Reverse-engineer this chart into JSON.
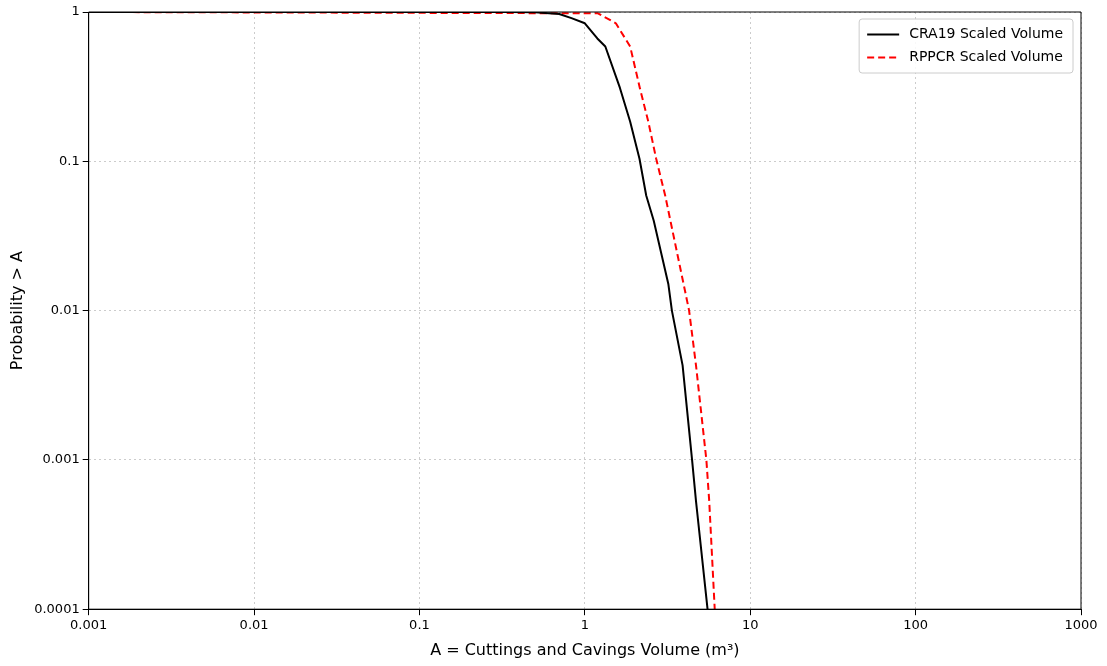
{
  "chart_data": {
    "type": "line",
    "xlabel": "A = Cuttings and Cavings Volume (m³)",
    "ylabel": "Probability > A",
    "log": "xy",
    "grid": true,
    "legend": "top right",
    "marker": "none",
    "xlim": [
      0.001,
      1000
    ],
    "xticks": [
      0.001,
      0.01,
      0.1,
      1,
      10,
      100,
      1000
    ],
    "ylim": [
      0.0001,
      1
    ],
    "yticks": [
      0.0001,
      0.001,
      0.01,
      0.1,
      1
    ],
    "series": [
      {
        "name": "CRA19 Scaled Volume",
        "color": "#000000",
        "line_style": "solid",
        "x": [
          0.001,
          0.3,
          0.5,
          0.7,
          0.83,
          1.0,
          1.19,
          1.33,
          1.63,
          1.88,
          2.14,
          2.35,
          2.61,
          3.2,
          3.36,
          3.9,
          4.45,
          4.7,
          5.52
        ],
        "values": [
          1,
          1,
          0.995,
          0.97,
          0.91,
          0.84,
          0.665,
          0.587,
          0.31,
          0.184,
          0.104,
          0.059,
          0.04,
          0.015,
          0.01,
          0.0043,
          0.001,
          0.00053,
          0.0001
        ]
      },
      {
        "name": "RPPCR Scaled Volume",
        "color": "#ff0000",
        "line_style": "dashed",
        "x": [
          0.001,
          1.2,
          1.54,
          1.88,
          2.15,
          2.42,
          2.7,
          3.06,
          4.27,
          4.7,
          5.43,
          5.65,
          6.1
        ],
        "values": [
          1,
          0.98,
          0.84,
          0.587,
          0.31,
          0.184,
          0.104,
          0.059,
          0.01,
          0.0043,
          0.001,
          0.00053,
          0.0001
        ]
      }
    ]
  }
}
